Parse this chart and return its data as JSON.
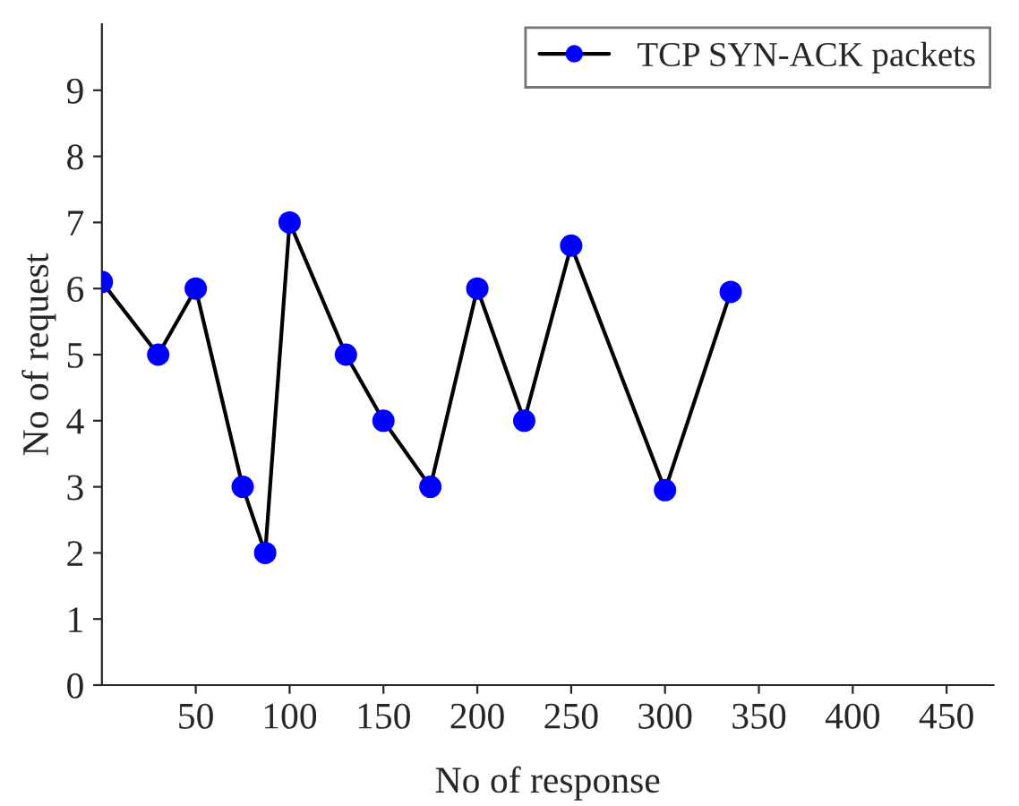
{
  "chart_data": {
    "type": "line",
    "xlabel": "No of response",
    "ylabel": "No of request",
    "x": [
      0,
      30,
      50,
      75,
      87,
      100,
      130,
      150,
      175,
      200,
      225,
      250,
      300,
      335
    ],
    "series": [
      {
        "name": "TCP SYN-ACK packets",
        "color": "#0000ff",
        "values": [
          6.1,
          5,
          6,
          3,
          2,
          7,
          5,
          4,
          3,
          6,
          4,
          6.65,
          2.95,
          5.95
        ]
      }
    ],
    "xlim": [
      0,
      475
    ],
    "ylim": [
      0,
      10
    ],
    "xticks": [
      50,
      100,
      150,
      200,
      250,
      300,
      350,
      400,
      450
    ],
    "yticks": [
      0,
      1,
      2,
      3,
      4,
      5,
      6,
      7,
      8,
      9
    ],
    "grid": false,
    "legend": "top right",
    "marker": "circle",
    "line_style": "solid"
  }
}
